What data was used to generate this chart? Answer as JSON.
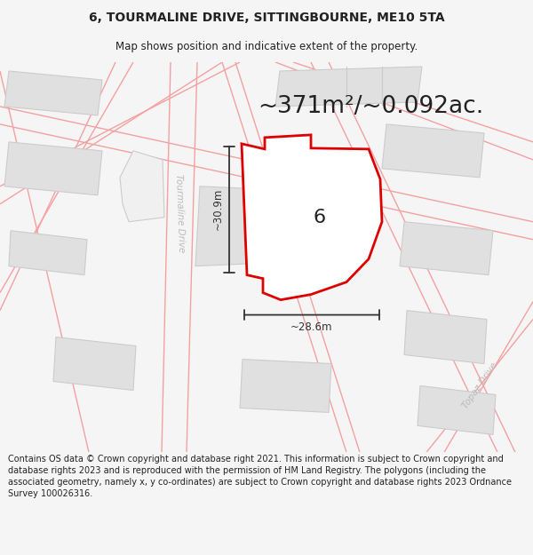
{
  "title": "6, TOURMALINE DRIVE, SITTINGBOURNE, ME10 5TA",
  "subtitle": "Map shows position and indicative extent of the property.",
  "area_text": "~371m²/~0.092ac.",
  "label_number": "6",
  "dim_horizontal": "~28.6m",
  "dim_vertical": "~30.9m",
  "road_label_tourmaline": "Tourmaline Drive",
  "road_label_topaz": "Topaz Drive",
  "footer": "Contains OS data © Crown copyright and database right 2021. This information is subject to Crown copyright and database rights 2023 and is reproduced with the permission of HM Land Registry. The polygons (including the associated geometry, namely x, y co-ordinates) are subject to Crown copyright and database rights 2023 Ordnance Survey 100026316.",
  "bg_color": "#f5f5f5",
  "map_bg": "#ffffff",
  "building_color": "#e0e0e0",
  "building_edge_color": "#cccccc",
  "road_line_color": "#f4a0a0",
  "highlight_color": "#dd0000",
  "dim_color": "#333333",
  "text_color": "#222222",
  "road_label_color": "#bbbbbb",
  "title_fontsize": 10,
  "subtitle_fontsize": 8.5,
  "area_fontsize": 19,
  "label_fontsize": 16,
  "footer_fontsize": 7.0
}
